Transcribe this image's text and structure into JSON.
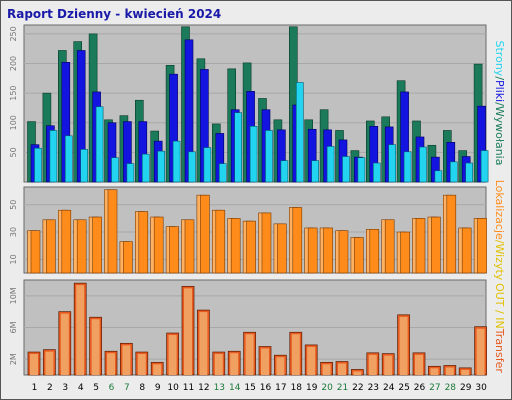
{
  "title": "Raport Dzienny -  kwiecień 2024",
  "colors": {
    "hits": "#1a7a5a",
    "files": "#1414e0",
    "pages": "#22d4f0",
    "visits": "#ff8c1a",
    "transfer": "#e85a20",
    "transfer_light": "#f0a060",
    "weekend": "#1a7a3a",
    "panel": "#c0c0c0"
  },
  "side_labels": {
    "top": [
      {
        "text": "Wywołania",
        "color": "#1a7a5a"
      },
      {
        "text": "/",
        "color": "#1a7a5a"
      },
      {
        "text": "Pliki",
        "color": "#1414e0"
      },
      {
        "text": "/",
        "color": "#1a7a5a"
      },
      {
        "text": "Strony",
        "color": "#22d4f0"
      }
    ],
    "middle": [
      {
        "text": "Wizyty",
        "color": "#e0c000"
      },
      {
        "text": "/",
        "color": "#e0c000"
      },
      {
        "text": "Lokalizacje",
        "color": "#ff8c1a"
      }
    ],
    "bottom": [
      {
        "text": "Transfer",
        "color": "#e85a20"
      },
      {
        "text": " IN",
        "color": "#e0c000"
      },
      {
        "text": " / ",
        "color": "#e0c000"
      },
      {
        "text": "OUT",
        "color": "#e0c000"
      }
    ]
  },
  "chart_data": [
    {
      "type": "bar",
      "categories": [
        "1",
        "2",
        "3",
        "4",
        "5",
        "6",
        "7",
        "8",
        "9",
        "10",
        "11",
        "12",
        "13",
        "14",
        "15",
        "16",
        "17",
        "18",
        "19",
        "20",
        "21",
        "22",
        "23",
        "24",
        "25",
        "26",
        "27",
        "28",
        "29",
        "30"
      ],
      "weekend_days": [
        "6",
        "7",
        "13",
        "14",
        "20",
        "21",
        "27",
        "28"
      ],
      "yticks": [
        "50",
        "100",
        "150",
        "200",
        "250"
      ],
      "ylim": [
        0,
        265
      ],
      "series": [
        {
          "name": "Wywołania",
          "values": [
            102,
            150,
            222,
            237,
            250,
            105,
            112,
            138,
            86,
            197,
            262,
            208,
            98,
            191,
            201,
            141,
            105,
            262,
            105,
            122,
            87,
            53,
            103,
            110,
            171,
            103,
            62,
            87,
            53,
            199
          ]
        },
        {
          "name": "Pliki",
          "values": [
            63,
            95,
            202,
            222,
            152,
            100,
            102,
            102,
            69,
            182,
            240,
            190,
            82,
            122,
            153,
            122,
            88,
            130,
            89,
            88,
            71,
            42,
            94,
            93,
            152,
            76,
            42,
            67,
            43,
            128
          ]
        },
        {
          "name": "Strony",
          "values": [
            57,
            87,
            78,
            55,
            127,
            41,
            31,
            47,
            52,
            69,
            51,
            58,
            31,
            117,
            94,
            87,
            36,
            168,
            36,
            60,
            43,
            41,
            32,
            63,
            51,
            59,
            19,
            34,
            32,
            53
          ]
        }
      ]
    },
    {
      "type": "bar",
      "categories": [
        "1",
        "2",
        "3",
        "4",
        "5",
        "6",
        "7",
        "8",
        "9",
        "10",
        "11",
        "12",
        "13",
        "14",
        "15",
        "16",
        "17",
        "18",
        "19",
        "20",
        "21",
        "22",
        "23",
        "24",
        "25",
        "26",
        "27",
        "28",
        "29",
        "30"
      ],
      "yticks": [
        "10",
        "30",
        "50"
      ],
      "ylim": [
        0,
        63
      ],
      "series": [
        {
          "name": "Wizyty",
          "values": [
            31,
            39,
            46,
            39,
            41,
            61,
            23,
            45,
            41,
            34,
            39,
            57,
            46,
            40,
            38,
            44,
            36,
            48,
            33,
            33,
            31,
            26,
            32,
            39,
            30,
            40,
            41,
            57,
            33,
            40
          ]
        },
        {
          "name": "Lokalizacje",
          "values": [
            31,
            39,
            46,
            39,
            41,
            61,
            23,
            45,
            41,
            34,
            39,
            57,
            46,
            40,
            38,
            44,
            36,
            48,
            33,
            33,
            31,
            26,
            32,
            39,
            30,
            40,
            41,
            57,
            33,
            40
          ]
        }
      ]
    },
    {
      "type": "bar",
      "categories": [
        "1",
        "2",
        "3",
        "4",
        "5",
        "6",
        "7",
        "8",
        "9",
        "10",
        "11",
        "12",
        "13",
        "14",
        "15",
        "16",
        "17",
        "18",
        "19",
        "20",
        "21",
        "22",
        "23",
        "24",
        "25",
        "26",
        "27",
        "28",
        "29",
        "30"
      ],
      "yticks": [
        "2M",
        "6M",
        "10M"
      ],
      "ylim": [
        0,
        12
      ],
      "series": [
        {
          "name": "Transfer",
          "values": [
            2.9,
            3.2,
            8.0,
            11.6,
            7.3,
            3.0,
            4.0,
            2.9,
            1.6,
            5.3,
            11.2,
            8.2,
            2.9,
            3.0,
            5.4,
            3.6,
            2.5,
            5.4,
            3.8,
            1.6,
            1.7,
            0.7,
            2.8,
            2.7,
            7.6,
            2.8,
            1.1,
            1.2,
            0.9,
            6.1
          ]
        }
      ]
    }
  ]
}
